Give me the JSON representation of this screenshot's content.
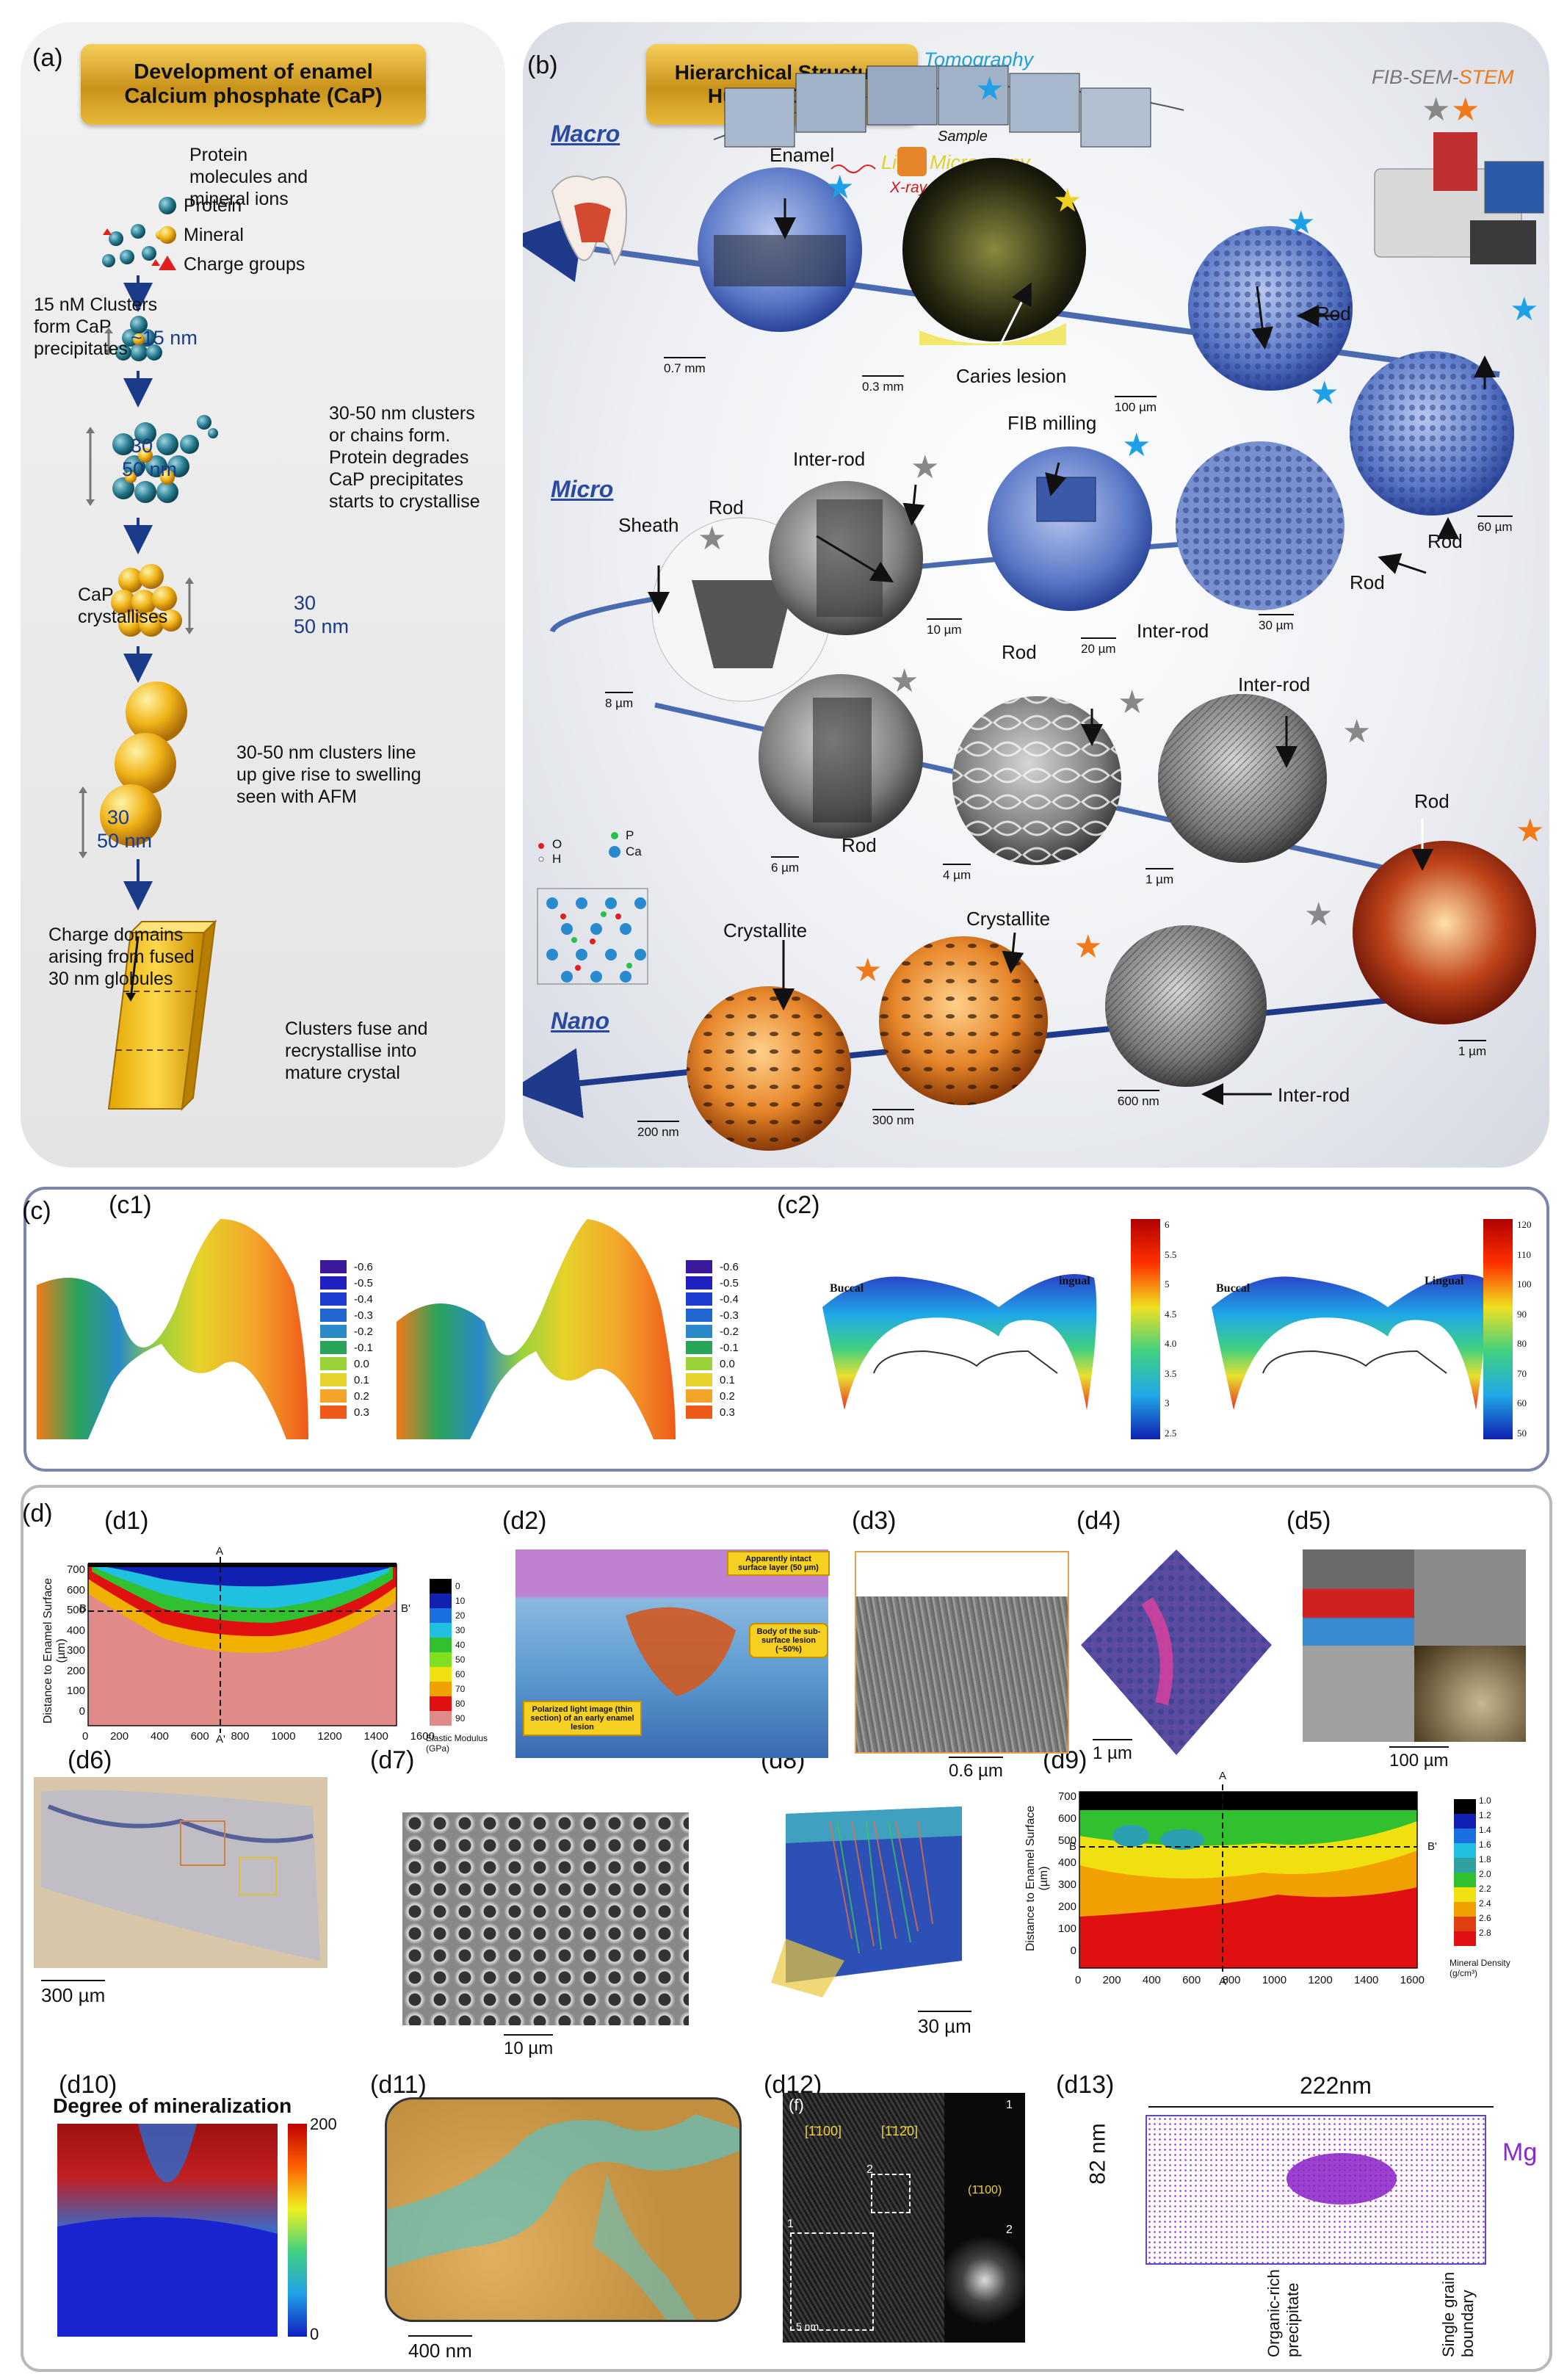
{
  "panel_a": {
    "label": "(a)",
    "title_line1": "Development of enamel",
    "title_line2": "Calcium phosphate (CaP)",
    "stage1": [
      "Protein",
      "molecules and",
      "mineral ions"
    ],
    "legend": [
      "Protein",
      "Mineral",
      "Charge groups"
    ],
    "stage2": [
      "15 nM Clusters",
      "form CaP",
      "precipitates"
    ],
    "stage2_size": "~15 nm",
    "stage3": [
      "30-50 nm clusters",
      "or chains form.",
      "Protein degrades",
      "CaP precipitates",
      "starts to crystallise"
    ],
    "size_30": "30",
    "size_50": "50 nm",
    "stage4": [
      "CaP",
      "crystallises"
    ],
    "stage5": [
      "30-50 nm clusters line",
      "up give rise to swelling",
      "seen with AFM"
    ],
    "stage6": [
      "Charge domains",
      "arising from fused",
      "30 nm globules"
    ],
    "stage7": [
      "Clusters fuse and",
      "recrystallise into",
      "mature crystal"
    ]
  },
  "panel_b": {
    "label": "(b)",
    "title_line1": "Hierarchical Structure",
    "title_line2": "Human Enamel",
    "tomography": "Tomography",
    "fib": "FIB-SEM-",
    "stem": "STEM",
    "xray": "X-ray",
    "sample": "Sample",
    "macro": "Macro",
    "micro": "Micro",
    "nano": "Nano",
    "light_microscopy": "Light Microscopy",
    "labels": {
      "enamel": "Enamel",
      "caries": "Caries lesion",
      "rod": "Rod",
      "inter_rod": "Inter-rod",
      "fib_milling": "FIB milling",
      "sheath": "Sheath",
      "crystallite": "Crystallite"
    },
    "scales": {
      "s07mm": "0.7 mm",
      "s03mm": "0.3 mm",
      "s100um": "100 µm",
      "s60um": "60 µm",
      "s10um": "10 µm",
      "s20um": "20 µm",
      "s30um": "30 µm",
      "s8um": "8 µm",
      "s6um": "6 µm",
      "s4um": "4 µm",
      "s1um": "1 µm",
      "s200nm": "200 nm",
      "s300nm": "300 nm",
      "s600nm": "600 nm"
    },
    "atoms": [
      "O",
      "H",
      "P",
      "Ca"
    ]
  },
  "panel_c": {
    "label": "(c)",
    "c1": "(c1)",
    "c2": "(c2)",
    "c1_scale": [
      "-0.6",
      "-0.5",
      "-0.4",
      "-0.3",
      "-0.2",
      "-0.1",
      "0.0",
      "0.1",
      "0.2",
      "0.3"
    ],
    "c1_colors": [
      "#3a1a9a",
      "#2020c0",
      "#1e3ecf",
      "#2266d0",
      "#2a8ac8",
      "#2aa45a",
      "#9ad23a",
      "#e6d22a",
      "#f3a52a",
      "#ef5a1a"
    ],
    "c2_left_scale": [
      "6",
      "5.5",
      "5",
      "4.5",
      "4.0",
      "3.5",
      "3",
      "2.5"
    ],
    "c2_right_scale": [
      "120",
      "110",
      "100",
      "90",
      "80",
      "70",
      "60",
      "50"
    ],
    "buccal": "Buccal",
    "lingual_left": "ingual",
    "lingual_right": "Lingual"
  },
  "panel_d": {
    "label": "(d)",
    "sub": [
      "(d1)",
      "(d2)",
      "(d3)",
      "(d4)",
      "(d5)",
      "(d6)",
      "(d7)",
      "(d8)",
      "(d9)",
      "(d10)",
      "(d11)",
      "(d12)",
      "(d13)"
    ],
    "d1": {
      "ylabel": "Distance to Enamel Surface (µm)",
      "yticks": [
        "700",
        "600",
        "500",
        "400",
        "300",
        "200",
        "100",
        "0"
      ],
      "xticks": [
        "0",
        "200",
        "400",
        "600",
        "800",
        "1000",
        "1200",
        "1400",
        "1600"
      ],
      "legend_title": "Elastic Modulus (GPa)",
      "legend": [
        "0",
        "10",
        "20",
        "30",
        "40",
        "50",
        "60",
        "70",
        "80",
        "90"
      ],
      "A": "A",
      "A2": "A'",
      "B": "B",
      "B2": "B'"
    },
    "d2": {
      "callout1": "Apparently intact surface layer (50 µm)",
      "callout2": "Body of the sub-surface lesion (~50%)",
      "callout3": "Polarized light image (thin section) of an early enamel lesion"
    },
    "d3_scale": "0.6 µm",
    "d4_scale": "1 µm",
    "d5_scale": "100 µm",
    "d6_scale": "300 µm",
    "d7_scale": "10 µm",
    "d8_scale": "30 µm",
    "d9": {
      "ylabel": "Distance to Enamel Surface (µm)",
      "yticks": [
        "700",
        "600",
        "500",
        "400",
        "300",
        "200",
        "100",
        "0"
      ],
      "xticks": [
        "0",
        "200",
        "400",
        "600",
        "800",
        "1000",
        "1200",
        "1400",
        "1600"
      ],
      "legend_title": "Mineral Density (g/cm³)",
      "legend": [
        "1.0",
        "1.2",
        "1.4",
        "1.6",
        "1.8",
        "2.0",
        "2.2",
        "2.4",
        "2.6",
        "2.8"
      ],
      "A": "A",
      "A2": "A'",
      "B": "B",
      "B2": "B'"
    },
    "d10": {
      "title": "Degree of mineralization",
      "max": "200",
      "min": "0"
    },
    "d11_scale": "400 nm",
    "d12": {
      "f": "(f)",
      "idx1": "[1̄100]",
      "idx2": "[1̄12̄0]",
      "idx3": "(1̄100)",
      "n1": "1",
      "n2": "2",
      "scale": "5 nm"
    },
    "d13": {
      "width": "222nm",
      "height": "82 nm",
      "element": "Mg",
      "label1": "Organic-rich precipitate",
      "label2": "Single grain boundary"
    }
  }
}
